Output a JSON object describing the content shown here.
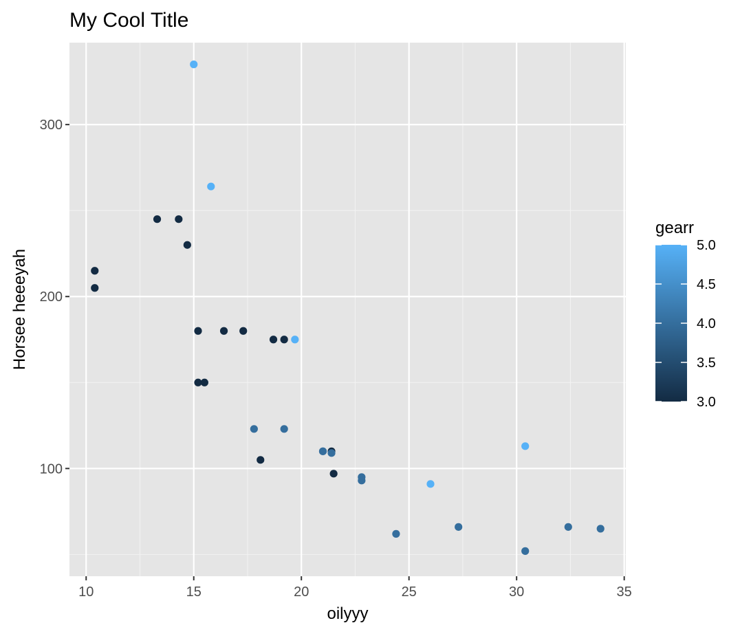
{
  "chart_data": {
    "type": "scatter",
    "title": "My Cool Title",
    "xlabel": "oilyyy",
    "ylabel": "Horsee heeeyah",
    "xlim": [
      9.225,
      35.075
    ],
    "ylim": [
      37.35,
      347.65
    ],
    "x_ticks": [
      10,
      15,
      20,
      25,
      30,
      35
    ],
    "y_ticks": [
      100,
      200,
      300
    ],
    "x_tick_labels": [
      "10",
      "15",
      "20",
      "25",
      "30",
      "35"
    ],
    "y_tick_labels": [
      "100",
      "200",
      "300"
    ],
    "grid": true,
    "legend": {
      "title": "gearr",
      "position": "right",
      "type": "colorbar",
      "min": 3.0,
      "max": 5.0,
      "breaks": [
        3.0,
        3.5,
        4.0,
        4.5,
        5.0
      ],
      "labels": [
        "3.0",
        "3.5",
        "4.0",
        "4.5",
        "5.0"
      ],
      "low_color": "#132B43",
      "high_color": "#56B1F7"
    },
    "colors": {
      "panel_background": "#E5E5E5",
      "grid_major": "#FFFFFF",
      "grid_minor": "#F2F2F2",
      "tick_label": "#4D4D4D"
    },
    "points": [
      {
        "x": 21.0,
        "y": 110,
        "gear": 4
      },
      {
        "x": 21.0,
        "y": 110,
        "gear": 4
      },
      {
        "x": 22.8,
        "y": 93,
        "gear": 4
      },
      {
        "x": 21.4,
        "y": 110,
        "gear": 3
      },
      {
        "x": 18.7,
        "y": 175,
        "gear": 3
      },
      {
        "x": 18.1,
        "y": 105,
        "gear": 3
      },
      {
        "x": 14.3,
        "y": 245,
        "gear": 3
      },
      {
        "x": 24.4,
        "y": 62,
        "gear": 4
      },
      {
        "x": 22.8,
        "y": 95,
        "gear": 4
      },
      {
        "x": 19.2,
        "y": 123,
        "gear": 4
      },
      {
        "x": 17.8,
        "y": 123,
        "gear": 4
      },
      {
        "x": 16.4,
        "y": 180,
        "gear": 3
      },
      {
        "x": 17.3,
        "y": 180,
        "gear": 3
      },
      {
        "x": 15.2,
        "y": 180,
        "gear": 3
      },
      {
        "x": 10.4,
        "y": 205,
        "gear": 3
      },
      {
        "x": 10.4,
        "y": 215,
        "gear": 3
      },
      {
        "x": 14.7,
        "y": 230,
        "gear": 3
      },
      {
        "x": 32.4,
        "y": 66,
        "gear": 4
      },
      {
        "x": 30.4,
        "y": 52,
        "gear": 4
      },
      {
        "x": 33.9,
        "y": 65,
        "gear": 4
      },
      {
        "x": 21.5,
        "y": 97,
        "gear": 3
      },
      {
        "x": 15.5,
        "y": 150,
        "gear": 3
      },
      {
        "x": 15.2,
        "y": 150,
        "gear": 3
      },
      {
        "x": 13.3,
        "y": 245,
        "gear": 3
      },
      {
        "x": 19.2,
        "y": 175,
        "gear": 3
      },
      {
        "x": 27.3,
        "y": 66,
        "gear": 4
      },
      {
        "x": 26.0,
        "y": 91,
        "gear": 5
      },
      {
        "x": 30.4,
        "y": 113,
        "gear": 5
      },
      {
        "x": 15.8,
        "y": 264,
        "gear": 5
      },
      {
        "x": 19.7,
        "y": 175,
        "gear": 5
      },
      {
        "x": 15.0,
        "y": 335,
        "gear": 5
      },
      {
        "x": 21.4,
        "y": 109,
        "gear": 4
      }
    ]
  }
}
